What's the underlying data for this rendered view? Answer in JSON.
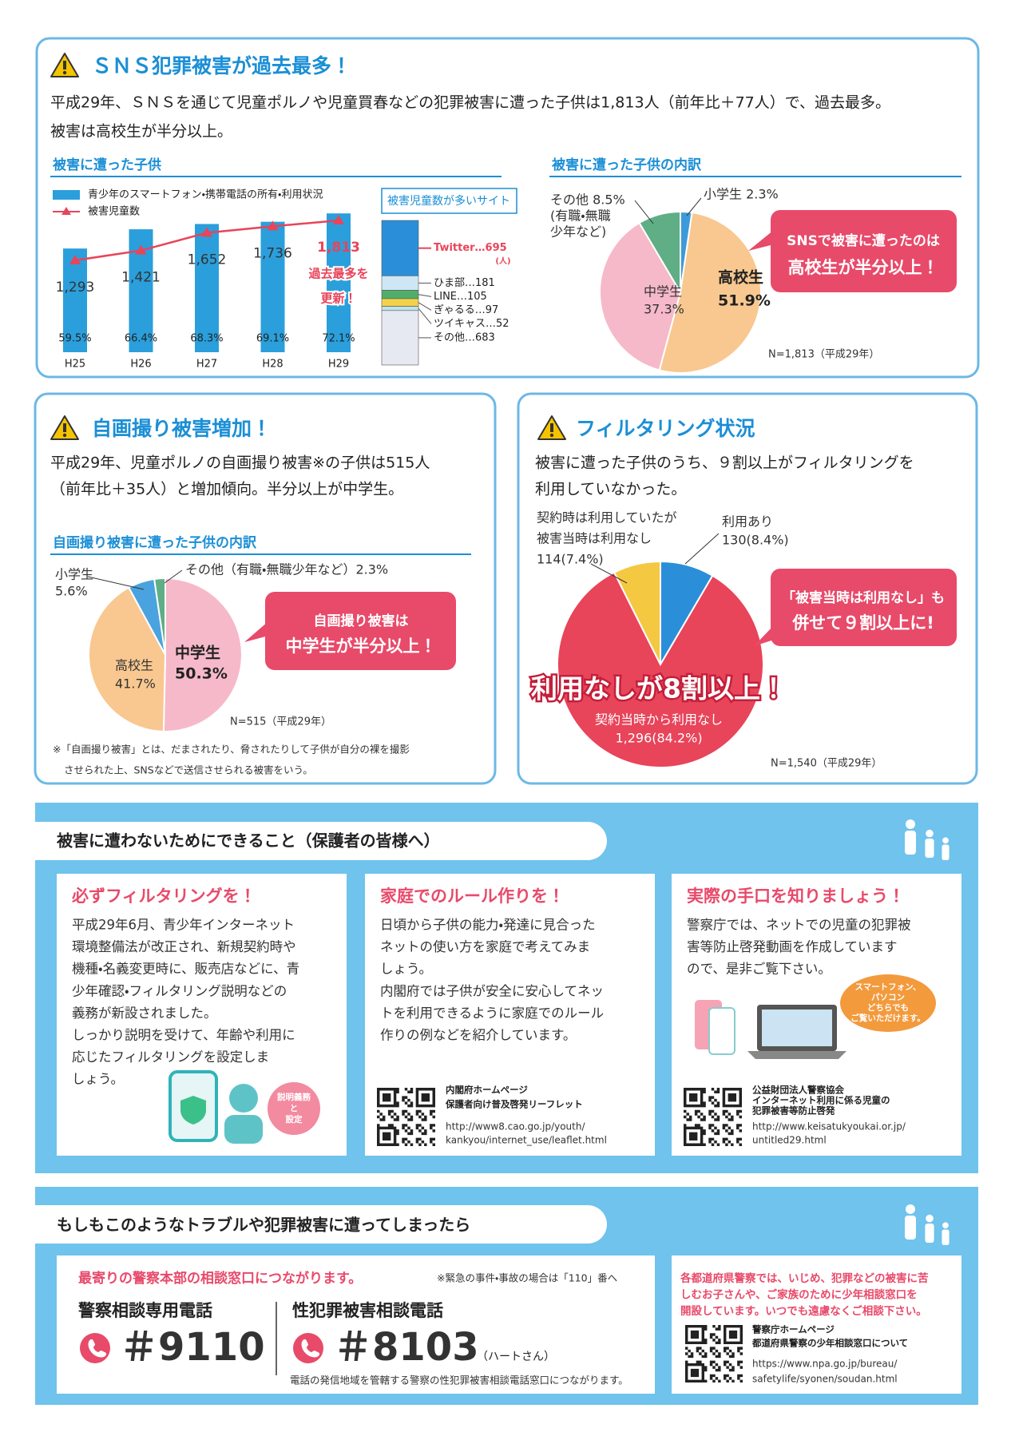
{
  "section1": {
    "title": "ＳＮＳ犯罪被害が過去最多！",
    "lead": [
      "平成29年、ＳＮＳを通じて児童ポルノや児童買春などの犯罪被害に遭った子供は1,813人（前年比＋77人）で、過去最多。",
      "被害は高校生が半分以上。"
    ],
    "trend_chart": {
      "title": "被害に遭った子供",
      "bar_legend": "青少年のスマートフォン・携帯電話の所有・利用状況",
      "line_legend": "被害児童数",
      "categories": [
        "H25",
        "H26",
        "H27",
        "H28",
        "H29"
      ],
      "bar_values": [
        59.5,
        66.4,
        68.3,
        69.1,
        72.1
      ],
      "bar_labels": [
        "59.5%",
        "66.4%",
        "68.3%",
        "69.1%",
        "72.1%"
      ],
      "bar_color": "#2a9fdb",
      "line_values": [
        1293,
        1421,
        1652,
        1736,
        1813
      ],
      "line_labels": [
        "1,293",
        "1,421",
        "1,652",
        "1,736",
        "1,813"
      ],
      "line_color": "#e8445a",
      "annotation": [
        "過去最多を",
        "更新！"
      ]
    },
    "sites_chart": {
      "title": "被害児童数が多いサイト",
      "items": [
        {
          "label": "Twitter…695",
          "value": 695,
          "color": "#2a8fd8"
        },
        {
          "label": "ひま部…181",
          "value": 181,
          "color": "#cfe6f5"
        },
        {
          "label": "LINE…105",
          "value": 105,
          "color": "#4fae6b"
        },
        {
          "label": "ぎゃるる…97",
          "value": 97,
          "color": "#f2d24a"
        },
        {
          "label": "ツイキャス…52",
          "value": 52,
          "color": "#bfe3ec"
        },
        {
          "label": "その他…683",
          "value": 683,
          "color": "#e6e8f2"
        }
      ],
      "unit": "(人)"
    },
    "pie_chart": {
      "title": "被害に遭った子供の内訳",
      "slices": [
        {
          "label": [
            "小学生 2.3%"
          ],
          "value": 2.3,
          "color": "#3d9ad8"
        },
        {
          "label": [
            "高校生",
            "51.9%"
          ],
          "value": 51.9,
          "color": "#f8c890"
        },
        {
          "label": [
            "中学生",
            "37.3%"
          ],
          "value": 37.3,
          "color": "#f6b9c9"
        },
        {
          "label": [
            "その他 8.5%",
            "(有職・無職",
            "少年など)"
          ],
          "value": 8.5,
          "color": "#5fae86"
        }
      ],
      "callout": [
        "SNSで被害に遭ったのは",
        "高校生が半分以上！"
      ],
      "note": "N=1,813（平成29年）"
    }
  },
  "section2": {
    "title": "自画撮り被害増加！",
    "lead": [
      "平成29年、児童ポルノの自画撮り被害※の子供は515人",
      "（前年比＋35人）と増加傾向。半分以上が中学生。"
    ],
    "pie_chart": {
      "title": "自画撮り被害に遭った子供の内訳",
      "slices": [
        {
          "label": [
            "中学生",
            "50.3%"
          ],
          "value": 50.3,
          "color": "#f6b9c9"
        },
        {
          "label": [
            "高校生",
            "41.7%"
          ],
          "value": 41.7,
          "color": "#f8c890"
        },
        {
          "label": [
            "小学生",
            "5.6%"
          ],
          "value": 5.6,
          "color": "#4aa3df"
        },
        {
          "label": [
            "その他（有職・無職少年など）2.3%"
          ],
          "value": 2.3,
          "color": "#5fae86"
        }
      ],
      "callout": [
        "自画撮り被害は",
        "中学生が半分以上！"
      ],
      "note": "N=515（平成29年）"
    },
    "footnote": [
      "※「自画撮り被害」とは、だまされたり、脅されたりして子供が自分の裸を撮影",
      "させられた上、SNSなどで送信させられる被害をいう。"
    ]
  },
  "section3": {
    "title": "フィルタリング状況",
    "lead": [
      "被害に遭った子供のうち、９割以上がフィルタリングを",
      "利用していなかった。"
    ],
    "pie_chart": {
      "slices": [
        {
          "label": [
            "利用あり",
            "130(8.4%)"
          ],
          "value": 130,
          "color": "#2a8fd8"
        },
        {
          "label": [
            "契約当時から利用なし",
            "1,296(84.2%)"
          ],
          "value": 1296,
          "color": "#e8445a"
        },
        {
          "label": [
            "契約時は利用していたが",
            "被害当時は利用なし",
            "114(7.4%)"
          ],
          "value": 114,
          "color": "#f5c842"
        }
      ],
      "headline": "利用なしが8割以上！",
      "callout": [
        "「被害当時は利用なし」も",
        "併せて９割以上に!"
      ],
      "note": "N=1,540（平成29年）"
    }
  },
  "section4": {
    "title": "被害に遭わないためにできること（保護者の皆様へ）",
    "cards": [
      {
        "heading": "必ずフィルタリングを！",
        "body": [
          "平成29年6月、青少年インターネット",
          "環境整備法が改正され、新規契約時や",
          "機種・名義変更時に、販売店などに、青",
          "少年確認・フィルタリング説明などの",
          "義務が新設されました。",
          "しっかり説明を受けて、年齢や利用に",
          "応じたフィルタリングを設定しま",
          "しょう。"
        ],
        "bubble": [
          "説明義務",
          "と",
          "設定"
        ]
      },
      {
        "heading": "家庭でのルール作りを！",
        "body": [
          "日頃から子供の能力・発達に見合った",
          "ネットの使い方を家庭で考えてみま",
          "しょう。",
          "内閣府では子供が安全に安心してネッ",
          "トを利用できるように家庭でのルール",
          "作りの例などを紹介しています。"
        ],
        "caption": [
          "内閣府ホームページ",
          "保護者向け普及啓発リーフレット"
        ],
        "url": [
          "http://www8.cao.go.jp/youth/",
          "kankyou/internet_use/leaflet.html"
        ]
      },
      {
        "heading": "実際の手口を知りましょう！",
        "body": [
          "警察庁では、ネットでの児童の犯罪被",
          "害等防止啓発動画を作成しています",
          "ので、是非ご覧下さい。"
        ],
        "bubble": [
          "スマートフォン、",
          "パソコン",
          "どちらでも",
          "ご覧いただけます。"
        ],
        "caption": [
          "公益財団法人警察協会",
          "インターネット利用に係る児童の",
          "犯罪被害等防止啓発"
        ],
        "url": [
          "http://www.keisatukyoukai.or.jp/",
          "untitled29.html"
        ]
      }
    ]
  },
  "section5": {
    "title": "もしもこのようなトラブルや犯罪被害に遭ってしまったら",
    "headline": "最寄りの警察本部の相談窓口につながります。",
    "note": "※緊急の事件・事故の場合は「110」番へ",
    "phones": [
      {
        "label": "警察相談専用電話",
        "number": "＃9110"
      },
      {
        "label": "性犯罪被害相談電話",
        "number": "＃8103",
        "suffix": "（ハートさん）"
      }
    ],
    "phone_note": "電話の発信地域を管轄する警察の性犯罪被害相談電話窓口につながります。",
    "side": {
      "text": [
        "各都道府県警察では、いじめ、犯罪などの被害に苦",
        "しむお子さんや、ご家族のために少年相談窓口を",
        "開設しています。いつでも遠慮なくご相談下さい。"
      ],
      "caption": [
        "警察庁ホームページ",
        "都道府県警察の少年相談窓口について"
      ],
      "url": [
        "https://www.npa.go.jp/bureau/",
        "safetylife/syonen/soudan.html"
      ]
    }
  }
}
